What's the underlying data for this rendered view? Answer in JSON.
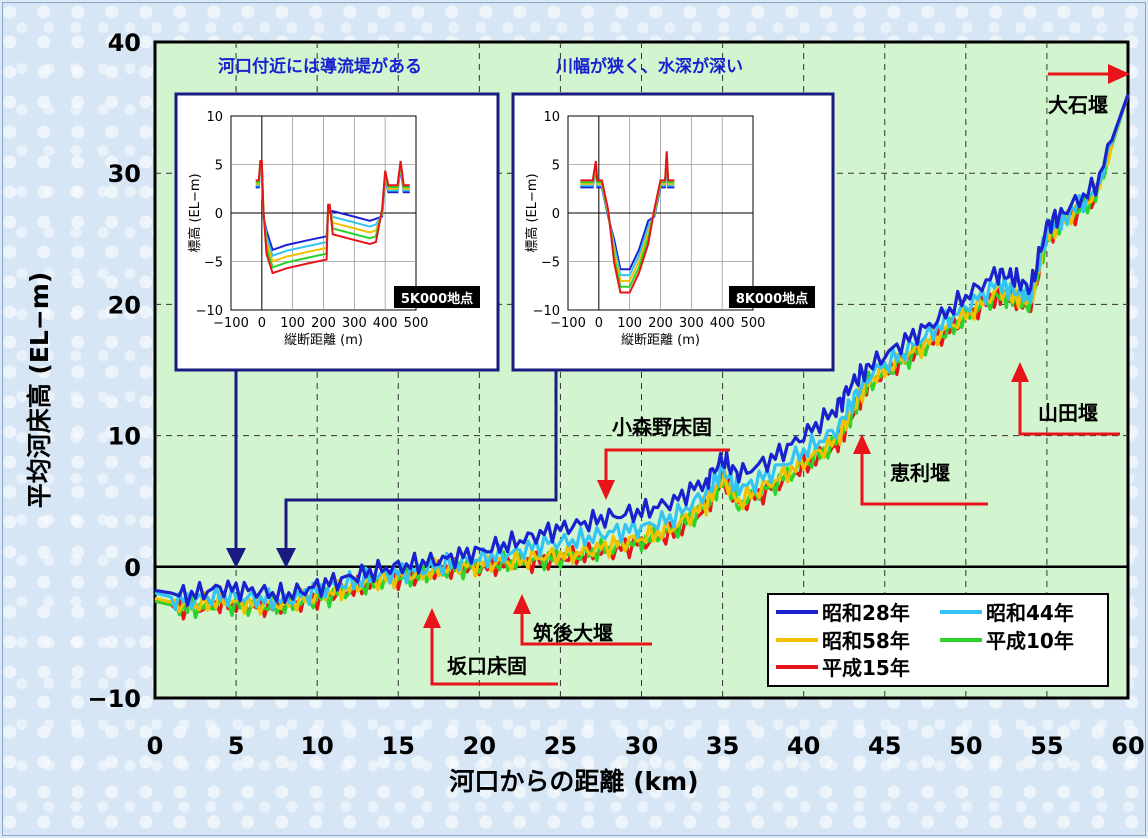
{
  "chart_data": {
    "type": "line",
    "ylabel": "平均河床高 (EL−m)",
    "xlabel": "河口からの距離 (km)",
    "xlim": [
      0,
      60
    ],
    "ylim": [
      -10,
      40
    ],
    "xticks": [
      "0",
      "5",
      "10",
      "15",
      "20",
      "25",
      "30",
      "35",
      "40",
      "45",
      "50",
      "55",
      "60"
    ],
    "yticks": [
      "40",
      "30",
      "20",
      "10",
      "0",
      "−10"
    ],
    "grid": true,
    "legend_position": "bottom-right",
    "x": [
      0,
      2,
      4,
      6,
      8,
      10,
      12,
      14,
      16,
      18,
      20,
      22,
      24,
      26,
      28,
      30,
      32,
      34,
      35,
      36,
      38,
      40,
      42,
      43,
      44,
      46,
      48,
      50,
      52,
      53,
      54,
      55,
      56,
      58,
      60
    ],
    "series": [
      {
        "name": "昭和28年",
        "color": "#1a22d0",
        "values": [
          -1.8,
          -2.2,
          -1.6,
          -1.8,
          -2.2,
          -1.5,
          -0.8,
          -0.2,
          0.2,
          0.6,
          1.2,
          1.8,
          2.6,
          3.2,
          3.8,
          4.2,
          5.0,
          6.6,
          8.2,
          7.0,
          8.2,
          10.0,
          12.0,
          14.0,
          15.2,
          17.0,
          18.6,
          20.6,
          22.4,
          22.0,
          21.2,
          26.0,
          27.0,
          29.0,
          36.0
        ]
      },
      {
        "name": "昭和44年",
        "color": "#33c3f5",
        "values": [
          -2.0,
          -2.6,
          -2.2,
          -2.4,
          -2.6,
          -1.8,
          -1.2,
          -0.6,
          -0.3,
          0.2,
          0.6,
          1.0,
          1.8,
          2.0,
          2.6,
          3.0,
          3.8,
          5.6,
          7.4,
          5.8,
          7.2,
          8.8,
          10.4,
          12.6,
          14.6,
          16.2,
          18.0,
          19.8,
          21.6,
          21.0,
          20.6,
          25.6,
          26.6,
          28.6,
          36.0
        ]
      },
      {
        "name": "昭和58年",
        "color": "#f2c100",
        "values": [
          -2.4,
          -3.0,
          -2.6,
          -2.8,
          -2.8,
          -2.2,
          -1.6,
          -0.9,
          -0.6,
          -0.1,
          0.2,
          0.4,
          0.8,
          1.0,
          1.6,
          2.2,
          3.0,
          4.8,
          6.8,
          5.0,
          6.4,
          8.0,
          9.6,
          12.0,
          14.2,
          15.8,
          17.4,
          19.2,
          21.0,
          20.6,
          20.2,
          25.4,
          26.4,
          28.4,
          36.0
        ]
      },
      {
        "name": "平成10年",
        "color": "#2bd42b",
        "values": [
          -2.6,
          -3.2,
          -2.8,
          -3.0,
          -3.0,
          -2.4,
          -1.8,
          -1.0,
          -0.7,
          -0.2,
          0.1,
          0.3,
          0.6,
          0.9,
          1.4,
          2.0,
          2.8,
          4.6,
          6.6,
          4.8,
          6.2,
          7.8,
          9.4,
          11.8,
          14.0,
          15.6,
          17.2,
          19.0,
          20.8,
          20.4,
          20.0,
          25.2,
          26.2,
          28.2,
          36.0
        ]
      },
      {
        "name": "平成15年",
        "color": "#e8141a",
        "values": [
          -2.6,
          -3.2,
          -2.8,
          -3.0,
          -3.0,
          -2.4,
          -1.8,
          -1.0,
          -0.7,
          -0.2,
          0.0,
          0.2,
          0.5,
          0.8,
          1.2,
          1.8,
          2.6,
          4.4,
          6.8,
          4.6,
          6.0,
          7.6,
          9.2,
          11.6,
          14.0,
          15.6,
          17.2,
          19.0,
          20.8,
          20.4,
          20.0,
          25.2,
          26.2,
          28.2,
          36.0
        ]
      }
    ],
    "annotations": [
      {
        "text": "大石堰",
        "x": 60
      },
      {
        "text": "山田堰",
        "x": 53
      },
      {
        "text": "恵利堰",
        "x": 43
      },
      {
        "text": "小森野床固",
        "x": 27
      },
      {
        "text": "筑後大堰",
        "x": 22
      },
      {
        "text": "坂口床固",
        "x": 17
      }
    ],
    "insets": [
      {
        "title": "河口付近には導流堤がある",
        "label": "5K000地点",
        "points_to_km": 5,
        "xlabel": "縦断距離 (m)",
        "ylabel": "標高 (EL−m)",
        "xticks": [
          "−100",
          "0",
          "100",
          "200",
          "300",
          "400",
          "500"
        ],
        "yticks": [
          "10",
          "5",
          "0",
          "−5",
          "−10"
        ],
        "xlim": [
          -100,
          500
        ],
        "ylim": [
          -10,
          10
        ]
      },
      {
        "title": "川幅が狭く、水深が深い",
        "label": "8K000地点",
        "points_to_km": 8,
        "xlabel": "縦断距離 (m)",
        "ylabel": "標高 (EL−m)",
        "xticks": [
          "−100",
          "0",
          "100",
          "200",
          "300",
          "400",
          "500"
        ],
        "yticks": [
          "10",
          "5",
          "0",
          "−5",
          "−10"
        ],
        "xlim": [
          -100,
          500
        ],
        "ylim": [
          -10,
          10
        ]
      }
    ]
  }
}
